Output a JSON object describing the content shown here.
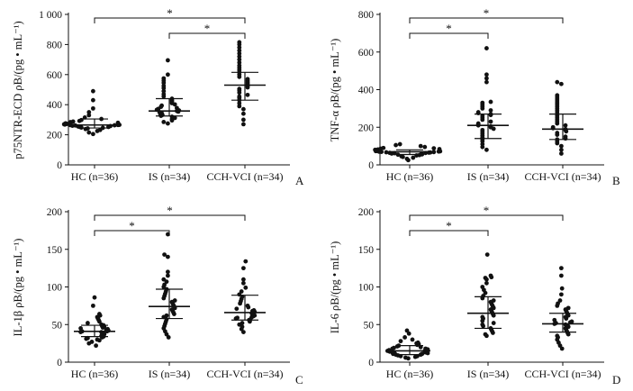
{
  "chart_data": [
    {
      "type": "scatter",
      "panel_label": "A",
      "ylabel": "p75NTR-ECD ρB/(pg • mL⁻¹)",
      "ylim": [
        0,
        1000
      ],
      "yticks": [
        0,
        200,
        400,
        600,
        800,
        1000
      ],
      "ytick_labels": [
        "0",
        "200",
        "400",
        "600",
        "800",
        "1 000"
      ],
      "categories": [
        "HC (n=36)",
        "IS (n=34)",
        "CCH-VCI (n=34)"
      ],
      "median": [
        265,
        358,
        530
      ],
      "iqr": [
        [
          245,
          305
        ],
        [
          325,
          440
        ],
        [
          430,
          615
        ]
      ],
      "points": [
        [
          205,
          215,
          225,
          232,
          238,
          242,
          246,
          248,
          250,
          252,
          254,
          256,
          258,
          260,
          262,
          263,
          264,
          265,
          266,
          268,
          270,
          272,
          274,
          276,
          280,
          284,
          288,
          292,
          298,
          305,
          315,
          330,
          350,
          375,
          430,
          490
        ],
        [
          275,
          285,
          295,
          305,
          312,
          320,
          326,
          332,
          338,
          344,
          350,
          354,
          358,
          362,
          366,
          372,
          378,
          386,
          394,
          402,
          410,
          420,
          430,
          440,
          455,
          470,
          490,
          510,
          525,
          545,
          560,
          575,
          600,
          695
        ],
        [
          270,
          300,
          340,
          370,
          390,
          410,
          430,
          445,
          455,
          465,
          480,
          495,
          505,
          515,
          525,
          530,
          540,
          550,
          560,
          570,
          585,
          600,
          615,
          630,
          645,
          660,
          680,
          700,
          720,
          740,
          760,
          780,
          800,
          815
        ]
      ],
      "significance": [
        {
          "from": 0,
          "to": 2,
          "label": "*"
        },
        {
          "from": 1,
          "to": 2,
          "label": "*"
        }
      ]
    },
    {
      "type": "scatter",
      "panel_label": "B",
      "ylabel": "TNF-α ρB/(pg • mL⁻¹)",
      "ylim": [
        0,
        800
      ],
      "yticks": [
        0,
        200,
        400,
        600,
        800
      ],
      "ytick_labels": [
        "0",
        "200",
        "400",
        "600",
        "800"
      ],
      "categories": [
        "HC (n=36)",
        "IS (n=34)",
        "CCH-VCI (n=34)"
      ],
      "median": [
        70,
        210,
        190
      ],
      "iqr": [
        [
          55,
          80
        ],
        [
          140,
          270
        ],
        [
          135,
          270
        ]
      ],
      "points": [
        [
          25,
          32,
          38,
          42,
          46,
          50,
          52,
          54,
          56,
          58,
          60,
          62,
          63,
          64,
          65,
          66,
          67,
          68,
          69,
          70,
          71,
          72,
          73,
          74,
          76,
          78,
          80,
          82,
          84,
          86,
          88,
          90,
          95,
          100,
          105,
          110
        ],
        [
          80,
          95,
          110,
          125,
          135,
          145,
          155,
          165,
          175,
          185,
          192,
          200,
          205,
          210,
          215,
          220,
          230,
          240,
          250,
          260,
          265,
          270,
          275,
          280,
          290,
          300,
          310,
          320,
          330,
          335,
          440,
          460,
          480,
          620
        ],
        [
          60,
          80,
          100,
          115,
          125,
          135,
          140,
          150,
          160,
          170,
          178,
          185,
          190,
          195,
          200,
          210,
          220,
          230,
          240,
          250,
          260,
          270,
          280,
          290,
          300,
          310,
          320,
          330,
          340,
          350,
          360,
          370,
          430,
          440
        ]
      ],
      "significance": [
        {
          "from": 0,
          "to": 2,
          "label": "*"
        },
        {
          "from": 0,
          "to": 1,
          "label": "*"
        }
      ]
    },
    {
      "type": "scatter",
      "panel_label": "C",
      "ylabel": "IL-1β ρB/(pg • mL⁻¹)",
      "ylim": [
        0,
        200
      ],
      "yticks": [
        0,
        50,
        100,
        150,
        200
      ],
      "ytick_labels": [
        "0",
        "50",
        "100",
        "150",
        "200"
      ],
      "categories": [
        "HC (n=36)",
        "IS (n=34)",
        "CCH-VCI (n=34)"
      ],
      "median": [
        41,
        74,
        66
      ],
      "iqr": [
        [
          34,
          49
        ],
        [
          58,
          97
        ],
        [
          56,
          89
        ]
      ],
      "points": [
        [
          22,
          25,
          27,
          29,
          30,
          31,
          32,
          33,
          34,
          35,
          36,
          37,
          38,
          39,
          40,
          40,
          41,
          41,
          42,
          43,
          44,
          45,
          46,
          47,
          48,
          49,
          50,
          52,
          54,
          56,
          58,
          60,
          62,
          64,
          75,
          86
        ],
        [
          33,
          37,
          41,
          45,
          48,
          51,
          54,
          57,
          60,
          62,
          64,
          66,
          68,
          70,
          72,
          74,
          76,
          78,
          80,
          82,
          85,
          88,
          91,
          94,
          97,
          100,
          103,
          107,
          110,
          115,
          120,
          140,
          143,
          170
        ],
        [
          40,
          44,
          47,
          50,
          52,
          54,
          56,
          57,
          58,
          59,
          60,
          61,
          62,
          63,
          64,
          65,
          66,
          67,
          68,
          69,
          71,
          73,
          75,
          78,
          81,
          84,
          87,
          90,
          94,
          99,
          105,
          110,
          125,
          134
        ]
      ],
      "significance": [
        {
          "from": 0,
          "to": 2,
          "label": "*"
        },
        {
          "from": 0,
          "to": 1,
          "label": "*"
        }
      ]
    },
    {
      "type": "scatter",
      "panel_label": "D",
      "ylabel": "IL-6 ρB/(pg • mL⁻¹)",
      "ylim": [
        0,
        200
      ],
      "yticks": [
        0,
        50,
        100,
        150,
        200
      ],
      "ytick_labels": [
        "0",
        "50",
        "100",
        "150",
        "200"
      ],
      "categories": [
        "HC (n=36)",
        "IS (n=34)",
        "CCH-VCI (n=34)"
      ],
      "median": [
        15,
        65,
        51
      ],
      "iqr": [
        [
          10,
          22
        ],
        [
          45,
          87
        ],
        [
          40,
          65
        ]
      ],
      "points": [
        [
          5,
          6,
          7,
          8,
          8,
          9,
          10,
          10,
          11,
          11,
          12,
          12,
          13,
          13,
          14,
          14,
          15,
          15,
          16,
          16,
          17,
          18,
          18,
          19,
          20,
          21,
          22,
          23,
          24,
          25,
          26,
          28,
          30,
          33,
          38,
          42
        ],
        [
          35,
          37,
          39,
          41,
          43,
          45,
          48,
          50,
          52,
          55,
          58,
          60,
          62,
          64,
          66,
          68,
          70,
          72,
          74,
          76,
          78,
          80,
          82,
          85,
          88,
          92,
          96,
          100,
          105,
          110,
          112,
          113,
          115,
          143
        ],
        [
          18,
          22,
          26,
          30,
          33,
          35,
          37,
          39,
          41,
          43,
          45,
          47,
          49,
          50,
          51,
          52,
          53,
          54,
          56,
          58,
          60,
          62,
          64,
          66,
          68,
          70,
          72,
          75,
          78,
          82,
          90,
          98,
          115,
          125
        ]
      ],
      "significance": [
        {
          "from": 0,
          "to": 2,
          "label": "*"
        },
        {
          "from": 0,
          "to": 1,
          "label": "*"
        }
      ]
    }
  ]
}
